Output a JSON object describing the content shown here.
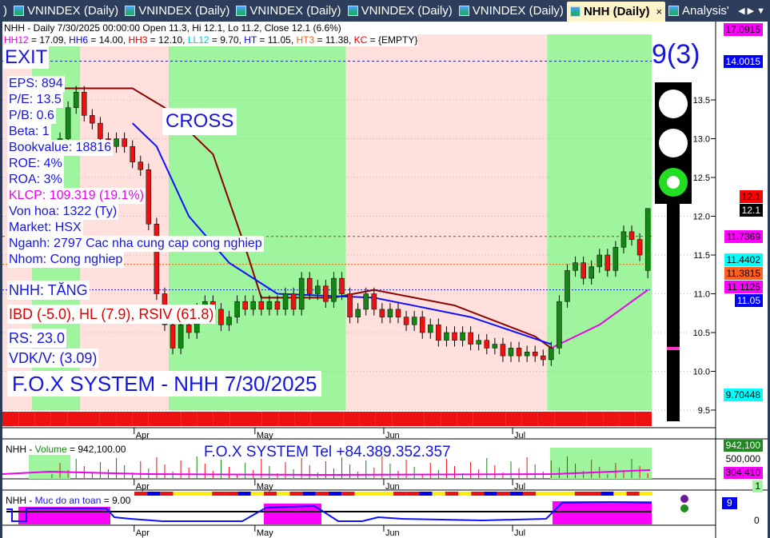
{
  "tabs": [
    {
      "label": ")"
    },
    {
      "label": "VNINDEX (Daily)"
    },
    {
      "label": "VNINDEX (Daily)"
    },
    {
      "label": "VNINDEX (Daily)"
    },
    {
      "label": "VNINDEX (Daily)"
    },
    {
      "label": "VNINDEX (Daily)"
    },
    {
      "label": "NHH (Daily)",
      "active": true,
      "close": "×"
    },
    {
      "label": "Analysis'"
    }
  ],
  "header": {
    "line1": "NHH - Daily 7/30/2025 00:00:00 Open 11.3, Hi 12.1, Lo 11.2, Close 12.1 (6.6%)",
    "line2": [
      {
        "k": "HH12",
        "v": " = 17.09, ",
        "c": "#e000e0"
      },
      {
        "k": "HH6",
        "v": " = 14.00, ",
        "c": "#0000e0"
      },
      {
        "k": "HH3",
        "v": " = 12.10, ",
        "c": "#e00000"
      },
      {
        "k": "LL12",
        "v": " = 9.70, ",
        "c": "#00c8e0"
      },
      {
        "k": "HT",
        "v": "  = 11.05, ",
        "c": "#0000e0"
      },
      {
        "k": "HT3",
        "v": "  = 11.38, ",
        "c": "#ff6010"
      },
      {
        "k": "KC",
        "v": " = {EMPTY}",
        "c": "#e00000"
      }
    ]
  },
  "overlay": {
    "exit": "EXIT",
    "cross": "CROSS",
    "signal": "9(3)",
    "fundamentals": [
      "EPS: 894",
      "P/E: 13.5",
      "P/B: 0.6",
      "Beta: 1",
      "Bookvalue: 18816",
      "ROE: 4%",
      "ROA: 3%",
      "KLCP: 109.319 (19.1%)",
      "Von hoa: 1322 (Ty)",
      "Market: HSX",
      "Nganh: 2797 Cac nha cung cap cong nghiep",
      "Nhom: Cong nghiep"
    ],
    "status": "NHH: TĂNG",
    "ibd": "IBD (-5.0), HL (7.9), RSIV (61.8)",
    "rs": "RS: 23.0",
    "vdk": "VDK/V:  (3.09)",
    "brand": "F.O.X SYSTEM - NHH 7/30/2025"
  },
  "axis_labels": [
    {
      "t": "17.0915",
      "bg": "#ff00ff",
      "fg": "#000",
      "v": 17.09
    },
    {
      "t": "14.0015",
      "bg": "#0000ff",
      "fg": "#fff",
      "v": 14.0
    },
    {
      "t": "12.1",
      "bg": "#ff0000",
      "fg": "#000",
      "v": 12.25
    },
    {
      "t": "12.1",
      "bg": "#000",
      "fg": "#fff",
      "v": 12.1
    },
    {
      "t": "11.7369",
      "bg": "#ff00ff",
      "fg": "#000",
      "v": 11.74
    },
    {
      "t": "11.4402",
      "bg": "#00ffff",
      "fg": "#000",
      "v": 11.44
    },
    {
      "t": "11.3815",
      "bg": "#ff6020",
      "fg": "#000",
      "v": 11.38
    },
    {
      "t": "11.1125",
      "bg": "#ff00ff",
      "fg": "#000",
      "v": 11.11
    },
    {
      "t": "11.05",
      "bg": "#0000ff",
      "fg": "#fff",
      "v": 11.0
    },
    {
      "t": "9.70448",
      "bg": "#00ffff",
      "fg": "#000",
      "v": 9.7
    }
  ],
  "chart_data": {
    "type": "candlestick",
    "ylim": [
      9.3,
      17.2
    ],
    "yticks": [
      9.5,
      10.0,
      10.5,
      11.0,
      11.5,
      12.0,
      12.5,
      13.0,
      13.5
    ],
    "months": [
      {
        "label": "Apr",
        "index": 11
      },
      {
        "label": "May",
        "index": 26
      },
      {
        "label": "Jun",
        "index": 42
      },
      {
        "label": "Jul",
        "index": 58
      }
    ],
    "last": {
      "open": 11.3,
      "high": 12.1,
      "low": 11.2,
      "close": 12.1
    },
    "closes": [
      12.7,
      13.0,
      13.4,
      13.6,
      13.3,
      13.2,
      13.0,
      12.9,
      13.0,
      12.9,
      12.7,
      12.6,
      11.9,
      11.0,
      10.6,
      10.3,
      10.6,
      10.5,
      10.8,
      10.9,
      10.8,
      10.6,
      10.7,
      10.9,
      10.8,
      10.9,
      10.8,
      10.9,
      10.8,
      11.0,
      10.8,
      11.2,
      11.0,
      11.1,
      10.9,
      11.2,
      11.0,
      10.7,
      10.8,
      11.0,
      10.8,
      10.7,
      10.8,
      10.7,
      10.6,
      10.7,
      10.5,
      10.6,
      10.4,
      10.5,
      10.4,
      10.5,
      10.35,
      10.4,
      10.3,
      10.35,
      10.2,
      10.3,
      10.2,
      10.25,
      10.2,
      10.15,
      10.3,
      10.9,
      11.3,
      11.4,
      11.2,
      11.35,
      11.5,
      11.3,
      11.6,
      11.8,
      11.7,
      11.5,
      12.1
    ],
    "brown_line": [
      [
        0,
        13.65
      ],
      [
        10,
        13.65
      ],
      [
        14,
        13.4
      ],
      [
        20,
        12.8
      ],
      [
        24,
        11.6
      ],
      [
        26,
        10.95
      ],
      [
        35,
        10.95
      ],
      [
        40,
        11.05
      ],
      [
        50,
        10.85
      ],
      [
        60,
        10.45
      ],
      [
        62,
        10.3
      ]
    ],
    "blue_line": [
      [
        10,
        13.2
      ],
      [
        13,
        12.9
      ],
      [
        17,
        12.0
      ],
      [
        22,
        11.4
      ],
      [
        28,
        11.0
      ],
      [
        40,
        10.95
      ],
      [
        52,
        10.7
      ],
      [
        62,
        10.35
      ]
    ],
    "magenta_line": [
      [
        62,
        10.3
      ],
      [
        68,
        10.6
      ],
      [
        74,
        11.05
      ]
    ],
    "bands": [
      {
        "from": -2,
        "to": -1,
        "c": "green"
      },
      {
        "from": -1,
        "to": 4,
        "c": "green"
      },
      {
        "from": 4,
        "to": 15,
        "c": "pink"
      },
      {
        "from": 15,
        "to": 37,
        "c": "green"
      },
      {
        "from": 37,
        "to": 62,
        "c": "pink"
      },
      {
        "from": 62,
        "to": 75,
        "c": "green"
      }
    ]
  },
  "volume": {
    "title_prefix": "NHH - ",
    "title_name": "Volume",
    "title_value": " = 942,100.00",
    "tel": "F.O.X SYSTEM Tel +84.389.352.357",
    "labels": [
      {
        "t": "942,100",
        "bg": "#1f8a1f",
        "fg": "#fff"
      },
      {
        "t": "500,000",
        "bg": "#fff",
        "fg": "#000"
      },
      {
        "t": "304,410",
        "bg": "#ff00ff",
        "fg": "#000"
      },
      {
        "t": "1",
        "bg": "#9ef59e",
        "fg": "#000"
      }
    ]
  },
  "safety": {
    "title_prefix": "NHH - ",
    "title_name": "Muc do an toan",
    "title_value": " = 9.00",
    "label": "9",
    "zero": "0"
  },
  "colors": {
    "green": "#9ef59e",
    "pink": "#ffe0dc",
    "up": "#118811",
    "down": "#ee1111"
  }
}
